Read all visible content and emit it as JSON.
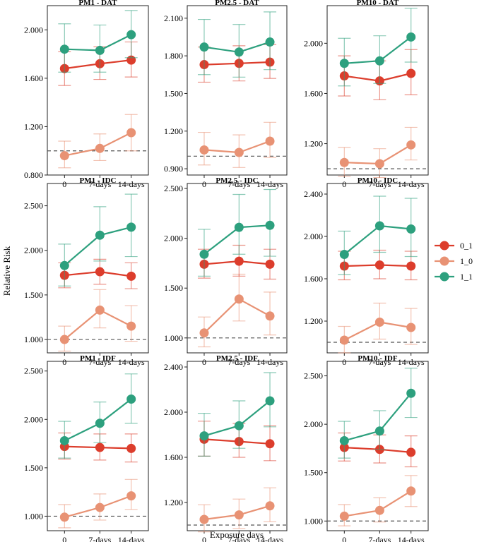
{
  "figure": {
    "ylabel": "Relative Risk",
    "xlabel": "Exposure days"
  },
  "legend": {
    "items": [
      {
        "label": "0_1",
        "color": "#DC3D2C"
      },
      {
        "label": "1_0",
        "color": "#E89274"
      },
      {
        "label": "1_1",
        "color": "#2DA07E"
      }
    ]
  },
  "chart_data": [
    {
      "type": "line",
      "title": "PM1 - DAT",
      "categories": [
        "0",
        "7-days",
        "14-days"
      ],
      "ylim": [
        0.8,
        2.2
      ],
      "yticks": [
        0.8,
        1.2,
        1.6,
        2.0
      ],
      "ytick_labels": [
        "0.800",
        "1.200",
        "1.600",
        "2.000"
      ],
      "reference": 1.0,
      "series": [
        {
          "name": "0_1",
          "values": [
            1.68,
            1.72,
            1.75
          ],
          "lower": [
            1.54,
            1.59,
            1.61
          ],
          "upper": [
            1.82,
            1.86,
            1.9
          ]
        },
        {
          "name": "1_0",
          "values": [
            0.96,
            1.02,
            1.15
          ],
          "lower": [
            0.86,
            0.92,
            1.0
          ],
          "upper": [
            1.08,
            1.14,
            1.3
          ]
        },
        {
          "name": "1_1",
          "values": [
            1.84,
            1.83,
            1.96
          ],
          "lower": [
            1.65,
            1.65,
            1.77
          ],
          "upper": [
            2.05,
            2.04,
            2.16
          ]
        }
      ]
    },
    {
      "type": "line",
      "title": "PM2.5 - DAT",
      "categories": [
        "0",
        "7-days",
        "14-days"
      ],
      "ylim": [
        0.85,
        2.2
      ],
      "yticks": [
        0.9,
        1.2,
        1.5,
        1.8,
        2.1
      ],
      "ytick_labels": [
        "0.900",
        "1.200",
        "1.500",
        "1.800",
        "2.100"
      ],
      "reference": 1.0,
      "series": [
        {
          "name": "0_1",
          "values": [
            1.73,
            1.74,
            1.75
          ],
          "lower": [
            1.59,
            1.6,
            1.62
          ],
          "upper": [
            1.87,
            1.88,
            1.89
          ]
        },
        {
          "name": "1_0",
          "values": [
            1.05,
            1.03,
            1.12
          ],
          "lower": [
            0.93,
            0.91,
            0.99
          ],
          "upper": [
            1.19,
            1.17,
            1.27
          ]
        },
        {
          "name": "1_1",
          "values": [
            1.87,
            1.83,
            1.91
          ],
          "lower": [
            1.65,
            1.63,
            1.69
          ],
          "upper": [
            2.09,
            2.05,
            2.15
          ]
        }
      ]
    },
    {
      "type": "line",
      "title": "PM10 - DAT",
      "categories": [
        "0",
        "7-days",
        "14-days"
      ],
      "ylim": [
        0.95,
        2.3
      ],
      "yticks": [
        1.2,
        1.6,
        2.0
      ],
      "ytick_labels": [
        "1.200",
        "1.600",
        "2.000"
      ],
      "reference": 1.0,
      "series": [
        {
          "name": "0_1",
          "values": [
            1.74,
            1.7,
            1.76
          ],
          "lower": [
            1.58,
            1.55,
            1.59
          ],
          "upper": [
            1.9,
            1.86,
            1.95
          ]
        },
        {
          "name": "1_0",
          "values": [
            1.05,
            1.04,
            1.19
          ],
          "lower": [
            0.94,
            0.93,
            1.07
          ],
          "upper": [
            1.17,
            1.16,
            1.33
          ]
        },
        {
          "name": "1_1",
          "values": [
            1.84,
            1.86,
            2.05
          ],
          "lower": [
            1.66,
            1.68,
            1.85
          ],
          "upper": [
            2.04,
            2.06,
            2.28
          ]
        }
      ]
    },
    {
      "type": "line",
      "title": "PM1 - IDC",
      "categories": [
        "0",
        "7-days",
        "14-days"
      ],
      "ylim": [
        0.85,
        2.75
      ],
      "yticks": [
        1.0,
        1.5,
        2.0,
        2.5
      ],
      "ytick_labels": [
        "1.000",
        "1.500",
        "2.000",
        "2.500"
      ],
      "reference": 1.0,
      "series": [
        {
          "name": "0_1",
          "values": [
            1.72,
            1.76,
            1.71
          ],
          "lower": [
            1.58,
            1.62,
            1.57
          ],
          "upper": [
            1.86,
            1.9,
            1.86
          ]
        },
        {
          "name": "1_0",
          "values": [
            1.0,
            1.33,
            1.15
          ],
          "lower": [
            0.87,
            1.13,
            0.98
          ],
          "upper": [
            1.15,
            1.56,
            1.38
          ]
        },
        {
          "name": "1_1",
          "values": [
            1.83,
            2.17,
            2.26
          ],
          "lower": [
            1.6,
            1.88,
            1.93
          ],
          "upper": [
            2.07,
            2.49,
            2.63
          ]
        }
      ]
    },
    {
      "type": "line",
      "title": "PM2.5 - IDC",
      "categories": [
        "0",
        "7-days",
        "14-days"
      ],
      "ylim": [
        0.85,
        2.55
      ],
      "yticks": [
        1.0,
        1.5,
        2.0,
        2.5
      ],
      "ytick_labels": [
        "1.000",
        "1.500",
        "2.000",
        "2.500"
      ],
      "reference": 1.0,
      "series": [
        {
          "name": "0_1",
          "values": [
            1.74,
            1.77,
            1.74
          ],
          "lower": [
            1.6,
            1.62,
            1.59
          ],
          "upper": [
            1.89,
            1.93,
            1.89
          ]
        },
        {
          "name": "1_0",
          "values": [
            1.05,
            1.39,
            1.22
          ],
          "lower": [
            0.91,
            1.17,
            1.03
          ],
          "upper": [
            1.21,
            1.64,
            1.46
          ]
        },
        {
          "name": "1_1",
          "values": [
            1.84,
            2.11,
            2.13
          ],
          "lower": [
            1.62,
            1.84,
            1.82
          ],
          "upper": [
            2.09,
            2.44,
            2.49
          ]
        }
      ]
    },
    {
      "type": "line",
      "title": "PM10 - IDC",
      "categories": [
        "0",
        "7-days",
        "14-days"
      ],
      "ylim": [
        0.9,
        2.5
      ],
      "yticks": [
        1.2,
        1.6,
        2.0,
        2.4
      ],
      "ytick_labels": [
        "1.200",
        "1.600",
        "2.000",
        "2.400"
      ],
      "reference": 1.0,
      "series": [
        {
          "name": "0_1",
          "values": [
            1.72,
            1.73,
            1.72
          ],
          "lower": [
            1.59,
            1.6,
            1.59
          ],
          "upper": [
            1.86,
            1.87,
            1.86
          ]
        },
        {
          "name": "1_0",
          "values": [
            1.02,
            1.19,
            1.14
          ],
          "lower": [
            0.9,
            1.03,
            0.98
          ],
          "upper": [
            1.15,
            1.37,
            1.32
          ]
        },
        {
          "name": "1_1",
          "values": [
            1.83,
            2.1,
            2.07
          ],
          "lower": [
            1.64,
            1.85,
            1.81
          ],
          "upper": [
            2.05,
            2.38,
            2.36
          ]
        }
      ]
    },
    {
      "type": "line",
      "title": "PM1 - IDF",
      "categories": [
        "0",
        "7-days",
        "14-days"
      ],
      "ylim": [
        0.85,
        2.6
      ],
      "yticks": [
        1.0,
        1.5,
        2.0,
        2.5
      ],
      "ytick_labels": [
        "1.000",
        "1.500",
        "2.000",
        "2.500"
      ],
      "reference": 1.0,
      "series": [
        {
          "name": "0_1",
          "values": [
            1.72,
            1.71,
            1.7
          ],
          "lower": [
            1.59,
            1.58,
            1.56
          ],
          "upper": [
            1.86,
            1.85,
            1.85
          ]
        },
        {
          "name": "1_0",
          "values": [
            0.99,
            1.09,
            1.21
          ],
          "lower": [
            0.88,
            0.96,
            1.07
          ],
          "upper": [
            1.12,
            1.23,
            1.38
          ]
        },
        {
          "name": "1_1",
          "values": [
            1.78,
            1.96,
            2.21
          ],
          "lower": [
            1.6,
            1.76,
            1.96
          ],
          "upper": [
            1.98,
            2.18,
            2.47
          ]
        }
      ]
    },
    {
      "type": "line",
      "title": "PM2.5 - IDF",
      "categories": [
        "0",
        "7-days",
        "14-days"
      ],
      "ylim": [
        0.95,
        2.45
      ],
      "yticks": [
        1.2,
        1.6,
        2.0,
        2.4
      ],
      "ytick_labels": [
        "1.200",
        "1.600",
        "2.000",
        "2.400"
      ],
      "reference": 1.0,
      "series": [
        {
          "name": "0_1",
          "values": [
            1.76,
            1.74,
            1.72
          ],
          "lower": [
            1.61,
            1.6,
            1.57
          ],
          "upper": [
            1.92,
            1.9,
            1.88
          ]
        },
        {
          "name": "1_0",
          "values": [
            1.05,
            1.09,
            1.17
          ],
          "lower": [
            0.94,
            0.97,
            1.03
          ],
          "upper": [
            1.18,
            1.23,
            1.33
          ]
        },
        {
          "name": "1_1",
          "values": [
            1.79,
            1.88,
            2.1
          ],
          "lower": [
            1.61,
            1.68,
            1.87
          ],
          "upper": [
            1.99,
            2.1,
            2.35
          ]
        }
      ]
    },
    {
      "type": "line",
      "title": "PM10 - IDF",
      "categories": [
        "0",
        "7-days",
        "14-days"
      ],
      "ylim": [
        0.9,
        2.65
      ],
      "yticks": [
        1.0,
        1.5,
        2.0,
        2.5
      ],
      "ytick_labels": [
        "1.000",
        "1.500",
        "2.000",
        "2.500"
      ],
      "reference": 1.0,
      "series": [
        {
          "name": "0_1",
          "values": [
            1.76,
            1.74,
            1.71
          ],
          "lower": [
            1.62,
            1.6,
            1.56
          ],
          "upper": [
            1.91,
            1.89,
            1.88
          ]
        },
        {
          "name": "1_0",
          "values": [
            1.05,
            1.11,
            1.31
          ],
          "lower": [
            0.95,
            0.99,
            1.15
          ],
          "upper": [
            1.17,
            1.24,
            1.47
          ]
        },
        {
          "name": "1_1",
          "values": [
            1.83,
            1.93,
            2.32
          ],
          "lower": [
            1.65,
            1.74,
            2.07
          ],
          "upper": [
            2.03,
            2.14,
            2.58
          ]
        }
      ]
    }
  ]
}
